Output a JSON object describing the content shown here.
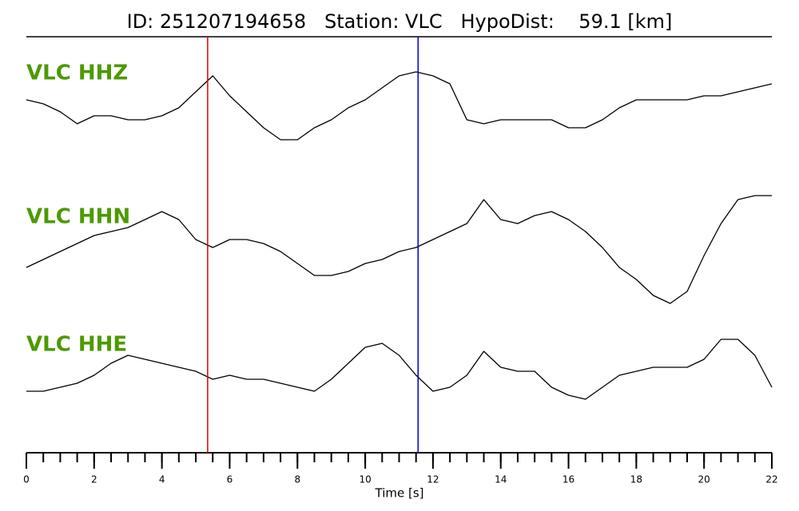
{
  "chart_data": {
    "type": "line",
    "title": "ID: 251207194658   Station: VLC   HypoDist:    59.1 [km]",
    "xlabel": "Time [s]",
    "xlim": [
      0,
      22
    ],
    "xticks": [
      0,
      2,
      4,
      6,
      8,
      10,
      12,
      14,
      16,
      18,
      20,
      22
    ],
    "minor_xticks": [
      0,
      0.5,
      1,
      1.5,
      2,
      2.5,
      3,
      3.5,
      4,
      4.5,
      5,
      5.5,
      6,
      6.5,
      7,
      7.5,
      8,
      8.5,
      9,
      9.5,
      10,
      10.5,
      11,
      11.5,
      12,
      12.5,
      13,
      13.5,
      14,
      14.5,
      15,
      15.5,
      16,
      16.5,
      17,
      17.5,
      18,
      18.5,
      19,
      19.5,
      20,
      20.5,
      21,
      21.5,
      22
    ],
    "ylim": [
      -90,
      90
    ],
    "label_color": "#4c9a00",
    "markers": [
      {
        "x": 5.35,
        "color": "#e00000"
      },
      {
        "x": 11.56,
        "color": "#0000cc"
      }
    ],
    "x": [
      0,
      0.5,
      1,
      1.5,
      2,
      2.5,
      3,
      3.5,
      4,
      4.5,
      5,
      5.5,
      6,
      6.5,
      7,
      7.5,
      8,
      8.5,
      9,
      9.5,
      10,
      10.5,
      11,
      11.5,
      12,
      12.5,
      13,
      13.5,
      14,
      14.5,
      15,
      15.5,
      16,
      16.5,
      17,
      17.5,
      18,
      18.5,
      19,
      19.5,
      20,
      20.5,
      21,
      21.5,
      22
    ],
    "series": [
      {
        "name": "VLC HHZ",
        "color": "#000000",
        "values": [
          5,
          0,
          -10,
          -25,
          -15,
          -15,
          -20,
          -20,
          -15,
          -5,
          15,
          35,
          10,
          -10,
          -30,
          -45,
          -45,
          -30,
          -20,
          -5,
          5,
          20,
          35,
          40,
          35,
          25,
          -20,
          -25,
          -20,
          -20,
          -20,
          -20,
          -30,
          -30,
          -20,
          -5,
          5,
          5,
          5,
          5,
          10,
          10,
          15,
          20,
          25
        ]
      },
      {
        "name": "VLC HHN",
        "color": "#000000",
        "values": [
          -25,
          -15,
          -5,
          5,
          15,
          20,
          25,
          35,
          45,
          35,
          10,
          0,
          10,
          10,
          5,
          -5,
          -20,
          -35,
          -35,
          -30,
          -20,
          -15,
          -5,
          0,
          10,
          20,
          30,
          60,
          35,
          30,
          40,
          45,
          35,
          20,
          0,
          -25,
          -40,
          -60,
          -70,
          -55,
          -10,
          30,
          60,
          65,
          65
        ]
      },
      {
        "name": "VLC HHE",
        "color": "#000000",
        "values": [
          -20,
          -20,
          -15,
          -10,
          0,
          15,
          25,
          20,
          15,
          10,
          5,
          -5,
          0,
          -5,
          -5,
          -10,
          -15,
          -20,
          -5,
          15,
          35,
          40,
          25,
          0,
          -20,
          -15,
          0,
          30,
          10,
          5,
          5,
          -15,
          -25,
          -30,
          -15,
          0,
          5,
          10,
          10,
          10,
          20,
          45,
          45,
          25,
          -15
        ]
      }
    ]
  }
}
